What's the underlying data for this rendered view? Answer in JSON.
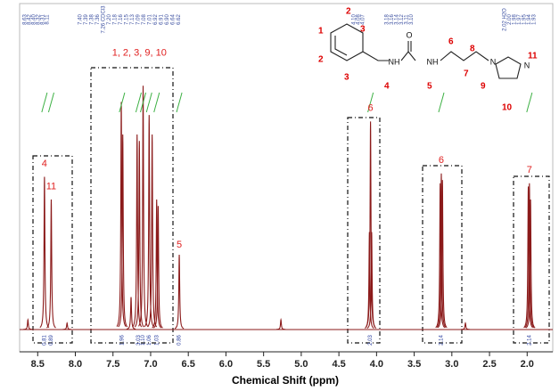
{
  "chart_data": {
    "type": "nmr",
    "x_label": "Chemical Shift (ppm)",
    "xlim": [
      8.74,
      1.66
    ],
    "xticks": [
      8.5,
      {
        "value": 8,
        "label": "8.0"
      },
      7.5,
      {
        "value": 7,
        "label": "7.0"
      },
      6.5,
      {
        "value": 6,
        "label": "6.0"
      },
      5.5,
      {
        "value": 5,
        "label": "5.0"
      },
      4.5,
      {
        "value": 4,
        "label": "4.0"
      },
      3.5,
      {
        "value": 3,
        "label": "3.0"
      },
      2.5,
      {
        "value": 2,
        "label": "2.0"
      }
    ],
    "color": "#8b1a1a",
    "peaks": {
      "x": [
        8.63,
        8.41,
        8.32,
        8.11,
        7.39,
        7.37,
        7.26,
        7.18,
        7.15,
        7.1,
        7.02,
        6.98,
        6.92,
        6.9,
        6.62,
        5.27,
        4.095,
        4.08,
        4.065,
        3.155,
        3.14,
        3.125,
        2.82,
        1.985,
        1.97,
        1.955
      ],
      "values": [
        0.03,
        0.47,
        0.4,
        0.02,
        0.7,
        0.6,
        0.1,
        0.6,
        0.58,
        0.75,
        0.66,
        0.6,
        0.4,
        0.38,
        0.23,
        0.03,
        0.3,
        0.64,
        0.3,
        0.45,
        0.48,
        0.46,
        0.02,
        0.44,
        0.45,
        0.4
      ]
    },
    "integrals": {
      "x": [
        8.41,
        8.32,
        7.38,
        7.16,
        7.1,
        7.02,
        6.92,
        6.62,
        4.08,
        3.14,
        1.97
      ],
      "labels": [
        "0.81",
        "0.89",
        "1.96",
        "3.03",
        "1.10",
        "1.06",
        "1.03",
        "0.86",
        "2.03",
        "2.14",
        "2.14"
      ]
    },
    "peak_list": [
      [
        "8.63",
        "8.42",
        "8.40",
        "8.32",
        "8.31",
        "8.11"
      ],
      [
        "7.40",
        "7.39",
        "7.38",
        "7.36",
        "7.26 CDCl3",
        "7.20",
        "7.18",
        "7.16",
        "7.15",
        "7.13",
        "7.09",
        "7.08",
        "7.01",
        "6.92",
        "6.91",
        "6.90",
        "6.64",
        "6.62"
      ],
      [
        "4.10",
        "4.08",
        "4.07"
      ],
      [
        "3.18",
        "3.16",
        "3.14",
        "3.12",
        "3.11",
        "3.10"
      ],
      [
        "2.02 H2O",
        "2.00",
        "1.98",
        "1.97",
        "1.95",
        "1.94",
        "1.93"
      ]
    ],
    "annotations": {
      "x": [
        8.41,
        8.32,
        7.15,
        6.62,
        4.08,
        3.14,
        1.97
      ],
      "labels": [
        "4",
        "11",
        "1, 2, 3, 9, 10",
        "5",
        "6",
        "6",
        "7"
      ],
      "heights": [
        0.51,
        0.44,
        0.85,
        0.26,
        0.68,
        0.52,
        0.49
      ]
    }
  },
  "structure": {
    "atoms": [
      "NH",
      "O",
      "NH",
      "N",
      "N"
    ],
    "labels": [
      "1",
      "2",
      "2",
      "3",
      "3",
      "4",
      "5",
      "6",
      "7",
      "8",
      "9",
      "10",
      "11"
    ]
  }
}
